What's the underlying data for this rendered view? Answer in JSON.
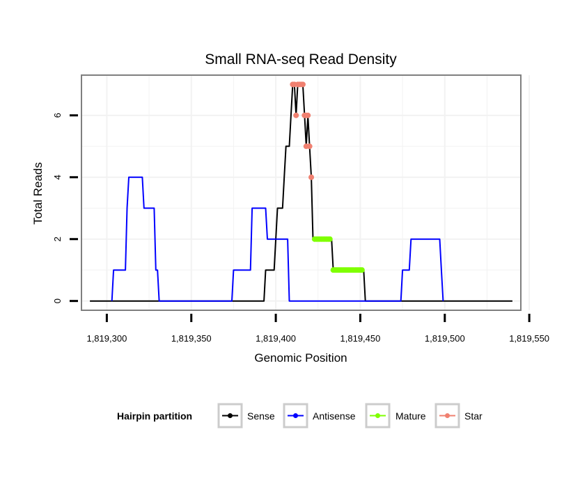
{
  "chart_data": {
    "type": "line",
    "title": "Small RNA-seq Read Density",
    "xlabel": "Genomic Position",
    "ylabel": "Total Reads",
    "xlim": [
      1819285,
      1819545
    ],
    "ylim": [
      -0.3,
      7.3
    ],
    "x_ticks": [
      1819300,
      1819350,
      1819400,
      1819450,
      1819500,
      1819550
    ],
    "x_tick_labels": [
      "1,819,300",
      "1,819,350",
      "1,819,400",
      "1,819,450",
      "1,819,500",
      "1,819,550"
    ],
    "y_ticks": [
      0,
      2,
      4,
      6
    ],
    "y_tick_labels": [
      "0",
      "2",
      "4",
      "6"
    ],
    "grid": true,
    "legend": {
      "title": "Hairpin partition",
      "position": "bottom",
      "entries": [
        "Sense",
        "Antisense",
        "Mature",
        "Star"
      ]
    },
    "colors": {
      "Sense": "#000000",
      "Antisense": "#0000ff",
      "Mature": "#7fff00",
      "Star": "#f08070"
    },
    "series": [
      {
        "name": "Sense",
        "style": "line",
        "points": [
          [
            1819290,
            0
          ],
          [
            1819393,
            0
          ],
          [
            1819394,
            1
          ],
          [
            1819399,
            1
          ],
          [
            1819400,
            2
          ],
          [
            1819401,
            3
          ],
          [
            1819404,
            3
          ],
          [
            1819405,
            4
          ],
          [
            1819406,
            5
          ],
          [
            1819408,
            5
          ],
          [
            1819409,
            6
          ],
          [
            1819410,
            7
          ],
          [
            1819411,
            7
          ],
          [
            1819412,
            6
          ],
          [
            1819413,
            7
          ],
          [
            1819416,
            7
          ],
          [
            1819417,
            6
          ],
          [
            1819418,
            5
          ],
          [
            1819419,
            6
          ],
          [
            1819420,
            5
          ],
          [
            1819421,
            4
          ],
          [
            1819422,
            2
          ],
          [
            1819433,
            2
          ],
          [
            1819434,
            1
          ],
          [
            1819452,
            1
          ],
          [
            1819453,
            0
          ],
          [
            1819540,
            0
          ]
        ]
      },
      {
        "name": "Antisense",
        "style": "line",
        "points": [
          [
            1819303,
            0
          ],
          [
            1819304,
            1
          ],
          [
            1819311,
            1
          ],
          [
            1819312,
            3
          ],
          [
            1819313,
            4
          ],
          [
            1819321,
            4
          ],
          [
            1819322,
            3
          ],
          [
            1819328,
            3
          ],
          [
            1819329,
            1
          ],
          [
            1819330,
            1
          ],
          [
            1819331,
            0
          ],
          [
            1819374,
            0
          ],
          [
            1819375,
            1
          ],
          [
            1819385,
            1
          ],
          [
            1819386,
            3
          ],
          [
            1819394,
            3
          ],
          [
            1819395,
            2
          ],
          [
            1819407,
            2
          ],
          [
            1819408,
            0
          ],
          [
            1819474,
            0
          ],
          [
            1819475,
            1
          ],
          [
            1819479,
            1
          ],
          [
            1819480,
            2
          ],
          [
            1819497,
            2
          ],
          [
            1819498,
            1
          ],
          [
            1819499,
            0
          ]
        ]
      },
      {
        "name": "Mature",
        "style": "points",
        "points": [
          [
            1819423,
            2
          ],
          [
            1819424,
            2
          ],
          [
            1819425,
            2
          ],
          [
            1819426,
            2
          ],
          [
            1819427,
            2
          ],
          [
            1819428,
            2
          ],
          [
            1819429,
            2
          ],
          [
            1819430,
            2
          ],
          [
            1819431,
            2
          ],
          [
            1819432,
            2
          ],
          [
            1819434,
            1
          ],
          [
            1819435,
            1
          ],
          [
            1819436,
            1
          ],
          [
            1819437,
            1
          ],
          [
            1819438,
            1
          ],
          [
            1819439,
            1
          ],
          [
            1819440,
            1
          ],
          [
            1819441,
            1
          ],
          [
            1819442,
            1
          ],
          [
            1819443,
            1
          ],
          [
            1819444,
            1
          ],
          [
            1819445,
            1
          ],
          [
            1819446,
            1
          ],
          [
            1819447,
            1
          ],
          [
            1819448,
            1
          ],
          [
            1819449,
            1
          ],
          [
            1819450,
            1
          ],
          [
            1819451,
            1
          ]
        ]
      },
      {
        "name": "Star",
        "style": "points",
        "points": [
          [
            1819410,
            7
          ],
          [
            1819411,
            7
          ],
          [
            1819412,
            6
          ],
          [
            1819413,
            7
          ],
          [
            1819414,
            7
          ],
          [
            1819415,
            7
          ],
          [
            1819416,
            7
          ],
          [
            1819417,
            6
          ],
          [
            1819418,
            6
          ],
          [
            1819418,
            5
          ],
          [
            1819419,
            6
          ],
          [
            1819420,
            5
          ],
          [
            1819421,
            4
          ]
        ]
      }
    ]
  }
}
